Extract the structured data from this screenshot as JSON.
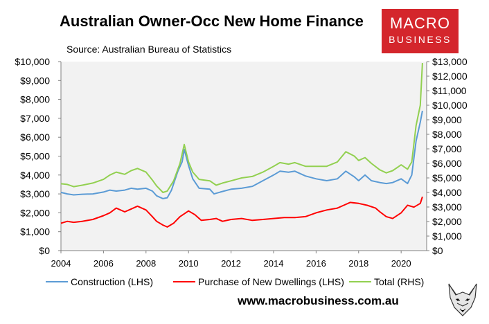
{
  "header": {
    "title": "Australian Owner-Occ New Home Finance",
    "subtitle": "Source: Australian Bureau of Statistics"
  },
  "logo": {
    "line1": "MACRO",
    "line2": "BUSINESS",
    "color": "#d4262c"
  },
  "footer": {
    "website": "www.macrobusiness.com.au",
    "mascot_icon": "fox-head-icon"
  },
  "chart_data": {
    "type": "line",
    "title": "Australian Owner-Occ New Home Finance",
    "subtitle": "Source: Australian Bureau of Statistics",
    "xlim": [
      2004,
      2021.2
    ],
    "x_ticks": [
      "2004",
      "2006",
      "2008",
      "2010",
      "2012",
      "2014",
      "2016",
      "2018",
      "2020"
    ],
    "y_left": {
      "lim": [
        0,
        10000
      ],
      "ticks": [
        "$0",
        "$1,000",
        "$2,000",
        "$3,000",
        "$4,000",
        "$5,000",
        "$6,000",
        "$7,000",
        "$8,000",
        "$9,000",
        "$10,000"
      ]
    },
    "y_right": {
      "lim": [
        0,
        13000
      ],
      "ticks": [
        "$0",
        "$1,000",
        "$2,000",
        "$3,000",
        "$4,000",
        "$5,000",
        "$6,000",
        "$7,000",
        "$8,000",
        "$9,000",
        "$10,000",
        "$11,000",
        "$12,000",
        "$13,000"
      ]
    },
    "plot_background": "#f2f2f2",
    "grid": false,
    "legend_position": "bottom",
    "series": [
      {
        "name": "Construction (LHS)",
        "axis": "left",
        "color": "#5b9bd5",
        "points": [
          [
            2004.0,
            3080
          ],
          [
            2004.3,
            3000
          ],
          [
            2004.6,
            2950
          ],
          [
            2005.0,
            2980
          ],
          [
            2005.5,
            3000
          ],
          [
            2006.0,
            3100
          ],
          [
            2006.3,
            3200
          ],
          [
            2006.6,
            3150
          ],
          [
            2007.0,
            3200
          ],
          [
            2007.3,
            3300
          ],
          [
            2007.6,
            3250
          ],
          [
            2008.0,
            3300
          ],
          [
            2008.3,
            3150
          ],
          [
            2008.5,
            2900
          ],
          [
            2008.8,
            2750
          ],
          [
            2009.0,
            2800
          ],
          [
            2009.2,
            3200
          ],
          [
            2009.5,
            4200
          ],
          [
            2009.7,
            4700
          ],
          [
            2009.8,
            5350
          ],
          [
            2010.0,
            4500
          ],
          [
            2010.2,
            3800
          ],
          [
            2010.5,
            3300
          ],
          [
            2011.0,
            3250
          ],
          [
            2011.2,
            3000
          ],
          [
            2011.5,
            3100
          ],
          [
            2012.0,
            3250
          ],
          [
            2012.5,
            3300
          ],
          [
            2013.0,
            3400
          ],
          [
            2013.5,
            3700
          ],
          [
            2014.0,
            4000
          ],
          [
            2014.3,
            4200
          ],
          [
            2014.7,
            4150
          ],
          [
            2015.0,
            4200
          ],
          [
            2015.5,
            3950
          ],
          [
            2016.0,
            3800
          ],
          [
            2016.5,
            3700
          ],
          [
            2017.0,
            3800
          ],
          [
            2017.4,
            4200
          ],
          [
            2017.8,
            3900
          ],
          [
            2018.0,
            3700
          ],
          [
            2018.3,
            4000
          ],
          [
            2018.6,
            3700
          ],
          [
            2019.0,
            3600
          ],
          [
            2019.3,
            3550
          ],
          [
            2019.6,
            3600
          ],
          [
            2020.0,
            3800
          ],
          [
            2020.3,
            3550
          ],
          [
            2020.5,
            4000
          ],
          [
            2020.7,
            5800
          ],
          [
            2020.9,
            6800
          ],
          [
            2021.0,
            7400
          ]
        ]
      },
      {
        "name": "Purchase of New Dwellings (LHS)",
        "axis": "left",
        "color": "#ff0000",
        "points": [
          [
            2004.0,
            1450
          ],
          [
            2004.3,
            1550
          ],
          [
            2004.6,
            1500
          ],
          [
            2005.0,
            1550
          ],
          [
            2005.5,
            1650
          ],
          [
            2006.0,
            1850
          ],
          [
            2006.3,
            2000
          ],
          [
            2006.6,
            2250
          ],
          [
            2007.0,
            2050
          ],
          [
            2007.3,
            2200
          ],
          [
            2007.6,
            2350
          ],
          [
            2008.0,
            2150
          ],
          [
            2008.3,
            1800
          ],
          [
            2008.5,
            1550
          ],
          [
            2008.8,
            1350
          ],
          [
            2009.0,
            1250
          ],
          [
            2009.3,
            1450
          ],
          [
            2009.6,
            1800
          ],
          [
            2010.0,
            2100
          ],
          [
            2010.3,
            1900
          ],
          [
            2010.6,
            1600
          ],
          [
            2011.0,
            1650
          ],
          [
            2011.3,
            1700
          ],
          [
            2011.6,
            1550
          ],
          [
            2012.0,
            1650
          ],
          [
            2012.5,
            1700
          ],
          [
            2013.0,
            1600
          ],
          [
            2013.5,
            1650
          ],
          [
            2014.0,
            1700
          ],
          [
            2014.5,
            1750
          ],
          [
            2015.0,
            1750
          ],
          [
            2015.5,
            1800
          ],
          [
            2016.0,
            2000
          ],
          [
            2016.5,
            2150
          ],
          [
            2017.0,
            2250
          ],
          [
            2017.3,
            2400
          ],
          [
            2017.6,
            2550
          ],
          [
            2018.0,
            2500
          ],
          [
            2018.4,
            2400
          ],
          [
            2018.8,
            2250
          ],
          [
            2019.0,
            2050
          ],
          [
            2019.3,
            1800
          ],
          [
            2019.6,
            1700
          ],
          [
            2020.0,
            2000
          ],
          [
            2020.3,
            2400
          ],
          [
            2020.6,
            2300
          ],
          [
            2020.9,
            2500
          ],
          [
            2021.0,
            2850
          ]
        ]
      },
      {
        "name": "Total (RHS)",
        "axis": "right",
        "color": "#92d050",
        "points": [
          [
            2004.0,
            4600
          ],
          [
            2004.3,
            4550
          ],
          [
            2004.6,
            4400
          ],
          [
            2005.0,
            4500
          ],
          [
            2005.5,
            4650
          ],
          [
            2006.0,
            4900
          ],
          [
            2006.3,
            5200
          ],
          [
            2006.6,
            5400
          ],
          [
            2007.0,
            5250
          ],
          [
            2007.3,
            5500
          ],
          [
            2007.6,
            5650
          ],
          [
            2008.0,
            5400
          ],
          [
            2008.3,
            4850
          ],
          [
            2008.5,
            4450
          ],
          [
            2008.8,
            4000
          ],
          [
            2009.0,
            4100
          ],
          [
            2009.3,
            4800
          ],
          [
            2009.6,
            6000
          ],
          [
            2009.8,
            7300
          ],
          [
            2010.0,
            6100
          ],
          [
            2010.2,
            5400
          ],
          [
            2010.5,
            4900
          ],
          [
            2011.0,
            4800
          ],
          [
            2011.3,
            4500
          ],
          [
            2011.6,
            4650
          ],
          [
            2012.0,
            4800
          ],
          [
            2012.5,
            5000
          ],
          [
            2013.0,
            5100
          ],
          [
            2013.5,
            5400
          ],
          [
            2014.0,
            5800
          ],
          [
            2014.3,
            6050
          ],
          [
            2014.7,
            5950
          ],
          [
            2015.0,
            6050
          ],
          [
            2015.5,
            5800
          ],
          [
            2016.0,
            5800
          ],
          [
            2016.5,
            5800
          ],
          [
            2017.0,
            6100
          ],
          [
            2017.4,
            6800
          ],
          [
            2017.8,
            6500
          ],
          [
            2018.0,
            6200
          ],
          [
            2018.3,
            6400
          ],
          [
            2018.6,
            6000
          ],
          [
            2019.0,
            5550
          ],
          [
            2019.3,
            5350
          ],
          [
            2019.6,
            5500
          ],
          [
            2020.0,
            5900
          ],
          [
            2020.3,
            5600
          ],
          [
            2020.5,
            6100
          ],
          [
            2020.7,
            8600
          ],
          [
            2020.9,
            10000
          ],
          [
            2021.0,
            12900
          ]
        ]
      }
    ]
  }
}
